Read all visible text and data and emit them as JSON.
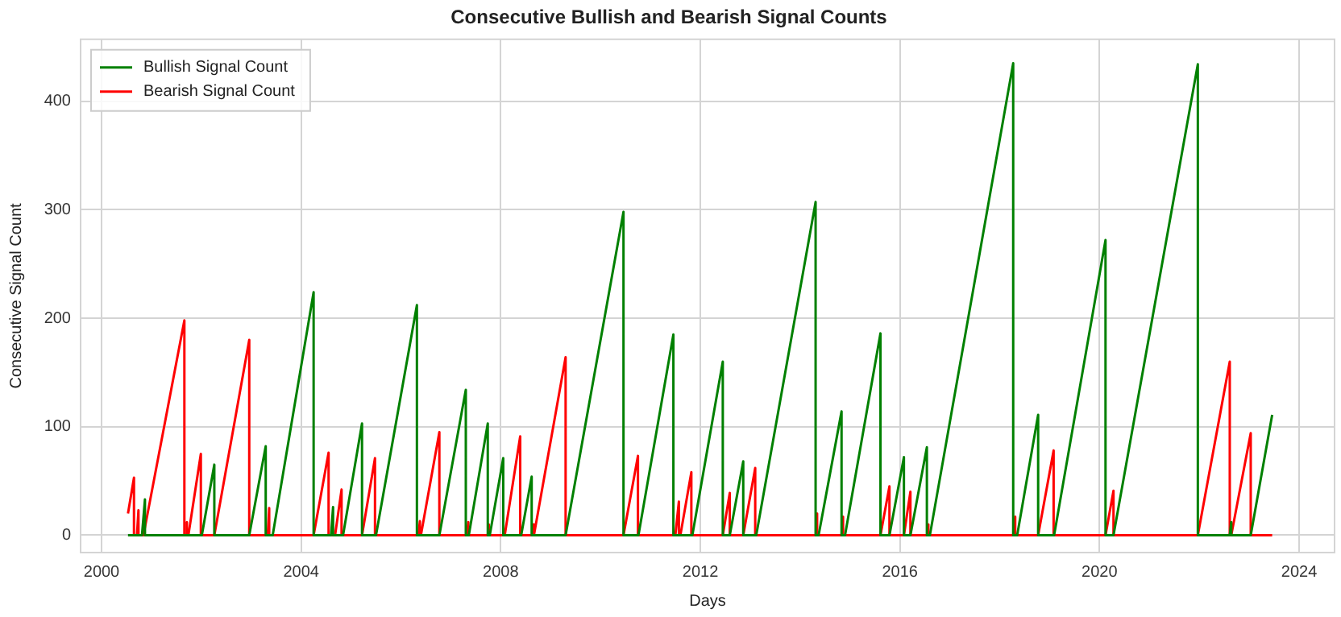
{
  "chart_data": {
    "type": "line",
    "title": "Consecutive Bullish and Bearish Signal Counts",
    "xlabel": "Days",
    "ylabel": "Consecutive Signal Count",
    "xlim": [
      1999.58,
      2024.71
    ],
    "xticks": [
      2000,
      2004,
      2008,
      2012,
      2016,
      2020,
      2024
    ],
    "ylim": [
      -16,
      457
    ],
    "yticks": [
      0,
      100,
      200,
      300,
      400
    ],
    "grid": true,
    "legend": "top left",
    "marker": "none",
    "line_style": "solid",
    "series": [
      {
        "name": "Bullish Signal Count",
        "color": "#008000",
        "x": [
          2000.53,
          2000.81,
          2000.87,
          2000.87,
          2002.01,
          2002.26,
          2002.26,
          2002.96,
          2003.29,
          2003.29,
          2003.43,
          2004.25,
          2004.25,
          2004.6,
          2004.64,
          2004.64,
          2004.84,
          2005.22,
          2005.22,
          2005.5,
          2006.32,
          2006.32,
          2006.77,
          2007.3,
          2007.3,
          2007.36,
          2007.74,
          2007.74,
          2007.78,
          2008.05,
          2008.05,
          2008.41,
          2008.62,
          2008.62,
          2009.3,
          2010.46,
          2010.46,
          2010.76,
          2011.46,
          2011.46,
          2011.84,
          2012.45,
          2012.45,
          2012.59,
          2012.86,
          2012.86,
          2013.12,
          2014.31,
          2014.31,
          2014.37,
          2014.83,
          2014.83,
          2014.9,
          2015.61,
          2015.61,
          2015.79,
          2016.08,
          2016.08,
          2016.21,
          2016.54,
          2016.54,
          2016.6,
          2018.27,
          2018.27,
          2018.35,
          2018.77,
          2018.77,
          2019.09,
          2020.12,
          2020.12,
          2020.28,
          2021.97,
          2021.97,
          2022.61,
          2022.64,
          2022.64,
          2023.03,
          2023.46
        ],
        "values": [
          0,
          0,
          33,
          0,
          0,
          65,
          0,
          0,
          82,
          0,
          0,
          224,
          0,
          0,
          26,
          0,
          0,
          103,
          0,
          0,
          212,
          0,
          0,
          134,
          0,
          0,
          103,
          0,
          0,
          71,
          0,
          0,
          54,
          0,
          0,
          298,
          0,
          0,
          185,
          0,
          0,
          160,
          0,
          0,
          68,
          0,
          0,
          307,
          0,
          0,
          114,
          0,
          0,
          186,
          0,
          0,
          72,
          0,
          0,
          81,
          0,
          0,
          435,
          0,
          0,
          111,
          0,
          0,
          272,
          0,
          0,
          434,
          0,
          0,
          12,
          0,
          0,
          111
        ]
      },
      {
        "name": "Bearish Signal Count",
        "color": "#ff0000",
        "x": [
          2000.53,
          2000.65,
          2000.65,
          2000.71,
          2000.74,
          2000.74,
          2000.84,
          2001.66,
          2001.66,
          2001.68,
          2001.71,
          2001.71,
          2001.74,
          2001.99,
          2001.99,
          2002.26,
          2002.96,
          2002.96,
          2003.33,
          2003.36,
          2003.36,
          2004.25,
          2004.55,
          2004.55,
          2004.68,
          2004.81,
          2004.81,
          2005.22,
          2005.48,
          2005.48,
          2006.35,
          2006.38,
          2006.38,
          2006.4,
          2006.77,
          2006.77,
          2007.32,
          2007.35,
          2007.35,
          2007.74,
          2007.76,
          2007.76,
          2008.08,
          2008.39,
          2008.39,
          2008.64,
          2008.66,
          2008.66,
          2008.67,
          2009.3,
          2009.3,
          2010.46,
          2010.75,
          2010.75,
          2011.5,
          2011.57,
          2011.57,
          2011.6,
          2011.82,
          2011.82,
          2012.45,
          2012.59,
          2012.59,
          2012.86,
          2013.1,
          2013.1,
          2014.31,
          2014.34,
          2014.34,
          2014.83,
          2014.86,
          2014.86,
          2015.61,
          2015.79,
          2015.79,
          2016.08,
          2016.21,
          2016.21,
          2016.54,
          2016.57,
          2016.57,
          2018.27,
          2018.31,
          2018.31,
          2018.77,
          2019.08,
          2019.08,
          2020.12,
          2020.28,
          2020.28,
          2021.97,
          2022.61,
          2022.61,
          2022.64,
          2023.03,
          2023.03,
          2023.46
        ],
        "values": [
          20,
          53,
          0,
          0,
          23,
          0,
          0,
          198,
          0,
          0,
          12,
          0,
          0,
          75,
          0,
          0,
          180,
          0,
          0,
          25,
          0,
          0,
          76,
          0,
          0,
          42,
          0,
          0,
          71,
          0,
          0,
          13,
          0,
          0,
          95,
          0,
          0,
          12,
          0,
          0,
          10,
          0,
          0,
          91,
          0,
          0,
          10,
          0,
          0,
          164,
          0,
          0,
          73,
          0,
          0,
          31,
          0,
          0,
          58,
          0,
          0,
          39,
          0,
          0,
          62,
          0,
          0,
          20,
          0,
          0,
          17,
          0,
          0,
          45,
          0,
          0,
          40,
          0,
          0,
          10,
          0,
          0,
          17,
          0,
          0,
          78,
          0,
          0,
          41,
          0,
          0,
          160,
          0,
          0,
          94,
          0,
          0
        ]
      }
    ]
  }
}
